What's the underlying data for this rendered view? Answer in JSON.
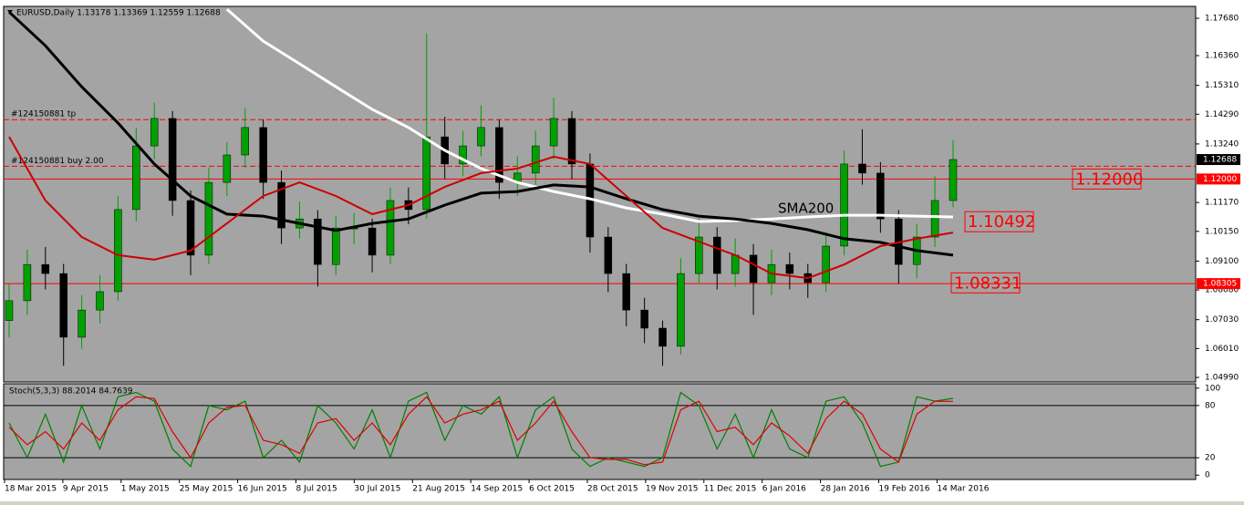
{
  "chart_data": [
    {
      "type": "candlestick",
      "title": "EURUSD,Daily  1.13178 1.13369 1.12559 1.12688",
      "x_labels": [
        "18 Mar 2015",
        "9 Apr 2015",
        "1 May 2015",
        "25 May 2015",
        "16 Jun 2015",
        "8 Jul 2015",
        "30 Jul 2015",
        "21 Aug 2015",
        "14 Sep 2015",
        "6 Oct 2015",
        "28 Oct 2015",
        "19 Nov 2015",
        "11 Dec 2015",
        "6 Jan 2016",
        "28 Jan 2016",
        "19 Feb 2016",
        "14 Mar 2016"
      ],
      "open": [
        1.07,
        1.077,
        1.0898,
        1.0866,
        1.0641,
        1.0737,
        1.0802,
        1.1092,
        1.1317,
        1.1414,
        1.1124,
        1.0931,
        1.1188,
        1.1285,
        1.1382,
        1.1188,
        1.1027,
        1.1059,
        1.0898,
        1.1027,
        1.1027,
        1.0931,
        1.1124,
        1.1092,
        1.1349,
        1.1253,
        1.1317,
        1.1382,
        1.1188,
        1.1221,
        1.1317,
        1.1414,
        1.1253,
        1.0995,
        1.0866,
        1.0737,
        1.0673,
        1.0609,
        1.0866,
        1.0995,
        1.0866,
        1.0931,
        1.0834,
        1.0898,
        1.0866,
        1.0834,
        1.0963,
        1.1253,
        1.1221,
        1.1059,
        1.0898,
        1.0995,
        1.1124
      ],
      "high": [
        1.083,
        1.095,
        1.096,
        1.09,
        1.079,
        1.086,
        1.114,
        1.138,
        1.147,
        1.144,
        1.116,
        1.124,
        1.133,
        1.145,
        1.141,
        1.123,
        1.112,
        1.109,
        1.107,
        1.108,
        1.106,
        1.117,
        1.117,
        1.1714,
        1.142,
        1.137,
        1.146,
        1.141,
        1.128,
        1.137,
        1.1487,
        1.144,
        1.129,
        1.103,
        1.09,
        1.078,
        1.07,
        1.092,
        1.106,
        1.103,
        1.099,
        1.097,
        1.095,
        1.094,
        1.09,
        1.101,
        1.13,
        1.1376,
        1.126,
        1.109,
        1.104,
        1.121,
        1.13369
      ],
      "low": [
        1.064,
        1.072,
        1.081,
        1.054,
        1.06,
        1.069,
        1.077,
        1.105,
        1.127,
        1.107,
        1.086,
        1.09,
        1.114,
        1.124,
        1.113,
        1.097,
        1.099,
        1.082,
        1.086,
        1.097,
        1.087,
        1.09,
        1.104,
        1.106,
        1.12,
        1.121,
        1.128,
        1.113,
        1.114,
        1.118,
        1.127,
        1.12,
        1.094,
        1.08,
        1.068,
        1.062,
        1.054,
        1.058,
        1.083,
        1.081,
        1.082,
        1.072,
        1.079,
        1.081,
        1.078,
        1.08,
        1.093,
        1.118,
        1.101,
        1.083,
        1.085,
        1.096,
        1.11
      ],
      "close": [
        1.077,
        1.0898,
        1.0866,
        1.0641,
        1.0737,
        1.0802,
        1.1092,
        1.1317,
        1.1414,
        1.1124,
        1.0931,
        1.1188,
        1.1285,
        1.1382,
        1.1188,
        1.1027,
        1.1059,
        1.0898,
        1.1027,
        1.1027,
        1.0931,
        1.1124,
        1.1092,
        1.1349,
        1.1253,
        1.1317,
        1.1382,
        1.1188,
        1.1221,
        1.1317,
        1.1414,
        1.1253,
        1.0995,
        1.0866,
        1.0737,
        1.0673,
        1.0609,
        1.0866,
        1.0995,
        1.0866,
        1.0931,
        1.0834,
        1.0898,
        1.0866,
        1.0834,
        1.0963,
        1.1253,
        1.1221,
        1.1059,
        1.0898,
        1.0995,
        1.1124,
        1.12688
      ],
      "up_color": "#00a000",
      "down_color": "#000000",
      "lines": [
        {
          "color": "#ffffff",
          "values": [
            null,
            null,
            null,
            null,
            null,
            null,
            1.18,
            1.1687,
            1.1607,
            1.1526,
            1.1446,
            1.1382,
            1.1301,
            1.1237,
            1.1188,
            1.1156,
            1.113,
            1.1098,
            1.1076,
            1.105,
            1.1053,
            1.1059,
            1.1066,
            1.1072,
            1.1072,
            1.1069,
            1.1066
          ]
        },
        {
          "color": "#000000",
          "values": [
            1.179,
            1.1671,
            1.1526,
            1.1398,
            1.1253,
            1.114,
            1.1076,
            1.1069,
            1.1043,
            1.1018,
            1.1043,
            1.1059,
            1.1108,
            1.115,
            1.1156,
            1.1179,
            1.1172,
            1.113,
            1.1092,
            1.1069,
            1.1059,
            1.1043,
            1.1021,
            1.0989,
            1.0976,
            1.0947,
            1.0931
          ]
        },
        {
          "color": "#cc0000",
          "values": [
            1.1349,
            1.1124,
            1.0995,
            1.0931,
            1.0915,
            1.0947,
            1.1043,
            1.114,
            1.1188,
            1.114,
            1.1076,
            1.1108,
            1.1172,
            1.1221,
            1.1237,
            1.1279,
            1.1253,
            1.114,
            1.1027,
            1.0979,
            1.0931,
            1.0866,
            1.085,
            1.0898,
            1.0963,
            1.0989,
            1.1011
          ]
        }
      ],
      "ylim": [
        1.0483,
        1.181
      ],
      "yticks": [
        {
          "value": 1.1768,
          "label": "1.17680"
        },
        {
          "value": 1.1636,
          "label": "1.16360"
        },
        {
          "value": 1.1531,
          "label": "1.15310"
        },
        {
          "value": 1.1429,
          "label": "1.14290"
        },
        {
          "value": 1.1324,
          "label": "1.13240"
        },
        {
          "value": 1.1117,
          "label": "1.11170"
        },
        {
          "value": 1.1015,
          "label": "1.10150"
        },
        {
          "value": 1.091,
          "label": "1.09100"
        },
        {
          "value": 1.0808,
          "label": "1.08080"
        },
        {
          "value": 1.0703,
          "label": "1.07030"
        },
        {
          "value": 1.0601,
          "label": "1.06010"
        },
        {
          "value": 1.0499,
          "label": "1.04990"
        }
      ],
      "levels": [
        {
          "label": "#124150881 tp",
          "value": 1.141
        },
        {
          "label": "#124150881 buy 2.00",
          "value": 1.1245
        }
      ],
      "price_labels": [
        {
          "value": 1.12688,
          "color": "#000000"
        },
        {
          "value": 1.12,
          "label": "1.12000",
          "color": "#ff0000"
        },
        {
          "value": 1.08305,
          "color": "#ff0000"
        }
      ],
      "annotations": [
        {
          "value": 1.12,
          "label": "1.12000"
        },
        {
          "value": 1.10492
        },
        {
          "value": 1.08331
        }
      ],
      "sma_label": "SMA200"
    },
    {
      "type": "stochastic",
      "title": "Stoch(5,3,3) 88.2014 84.7639",
      "series": [
        {
          "color": "#008000",
          "values": [
            60,
            20,
            70,
            15,
            80,
            30,
            90,
            95,
            85,
            30,
            10,
            80,
            75,
            85,
            20,
            40,
            15,
            80,
            60,
            30,
            75,
            20,
            85,
            95,
            40,
            80,
            70,
            90,
            20,
            75,
            90,
            30,
            10,
            20,
            15,
            10,
            20,
            95,
            80,
            30,
            70,
            20,
            75,
            30,
            20,
            85,
            90,
            60,
            10,
            15,
            90,
            85,
            88.2014
          ]
        },
        {
          "color": "#dd0000",
          "values": [
            55,
            35,
            50,
            30,
            60,
            40,
            75,
            90,
            88,
            50,
            20,
            60,
            78,
            80,
            40,
            35,
            25,
            60,
            65,
            40,
            60,
            35,
            70,
            90,
            60,
            70,
            75,
            85,
            40,
            60,
            85,
            50,
            20,
            18,
            18,
            12,
            15,
            75,
            85,
            50,
            55,
            35,
            60,
            45,
            25,
            65,
            85,
            70,
            30,
            15,
            70,
            85,
            84.7639
          ]
        }
      ],
      "ylim": [
        -5,
        105
      ],
      "yticks": [
        0,
        20,
        80,
        100
      ],
      "levels": [
        20,
        80
      ]
    }
  ]
}
